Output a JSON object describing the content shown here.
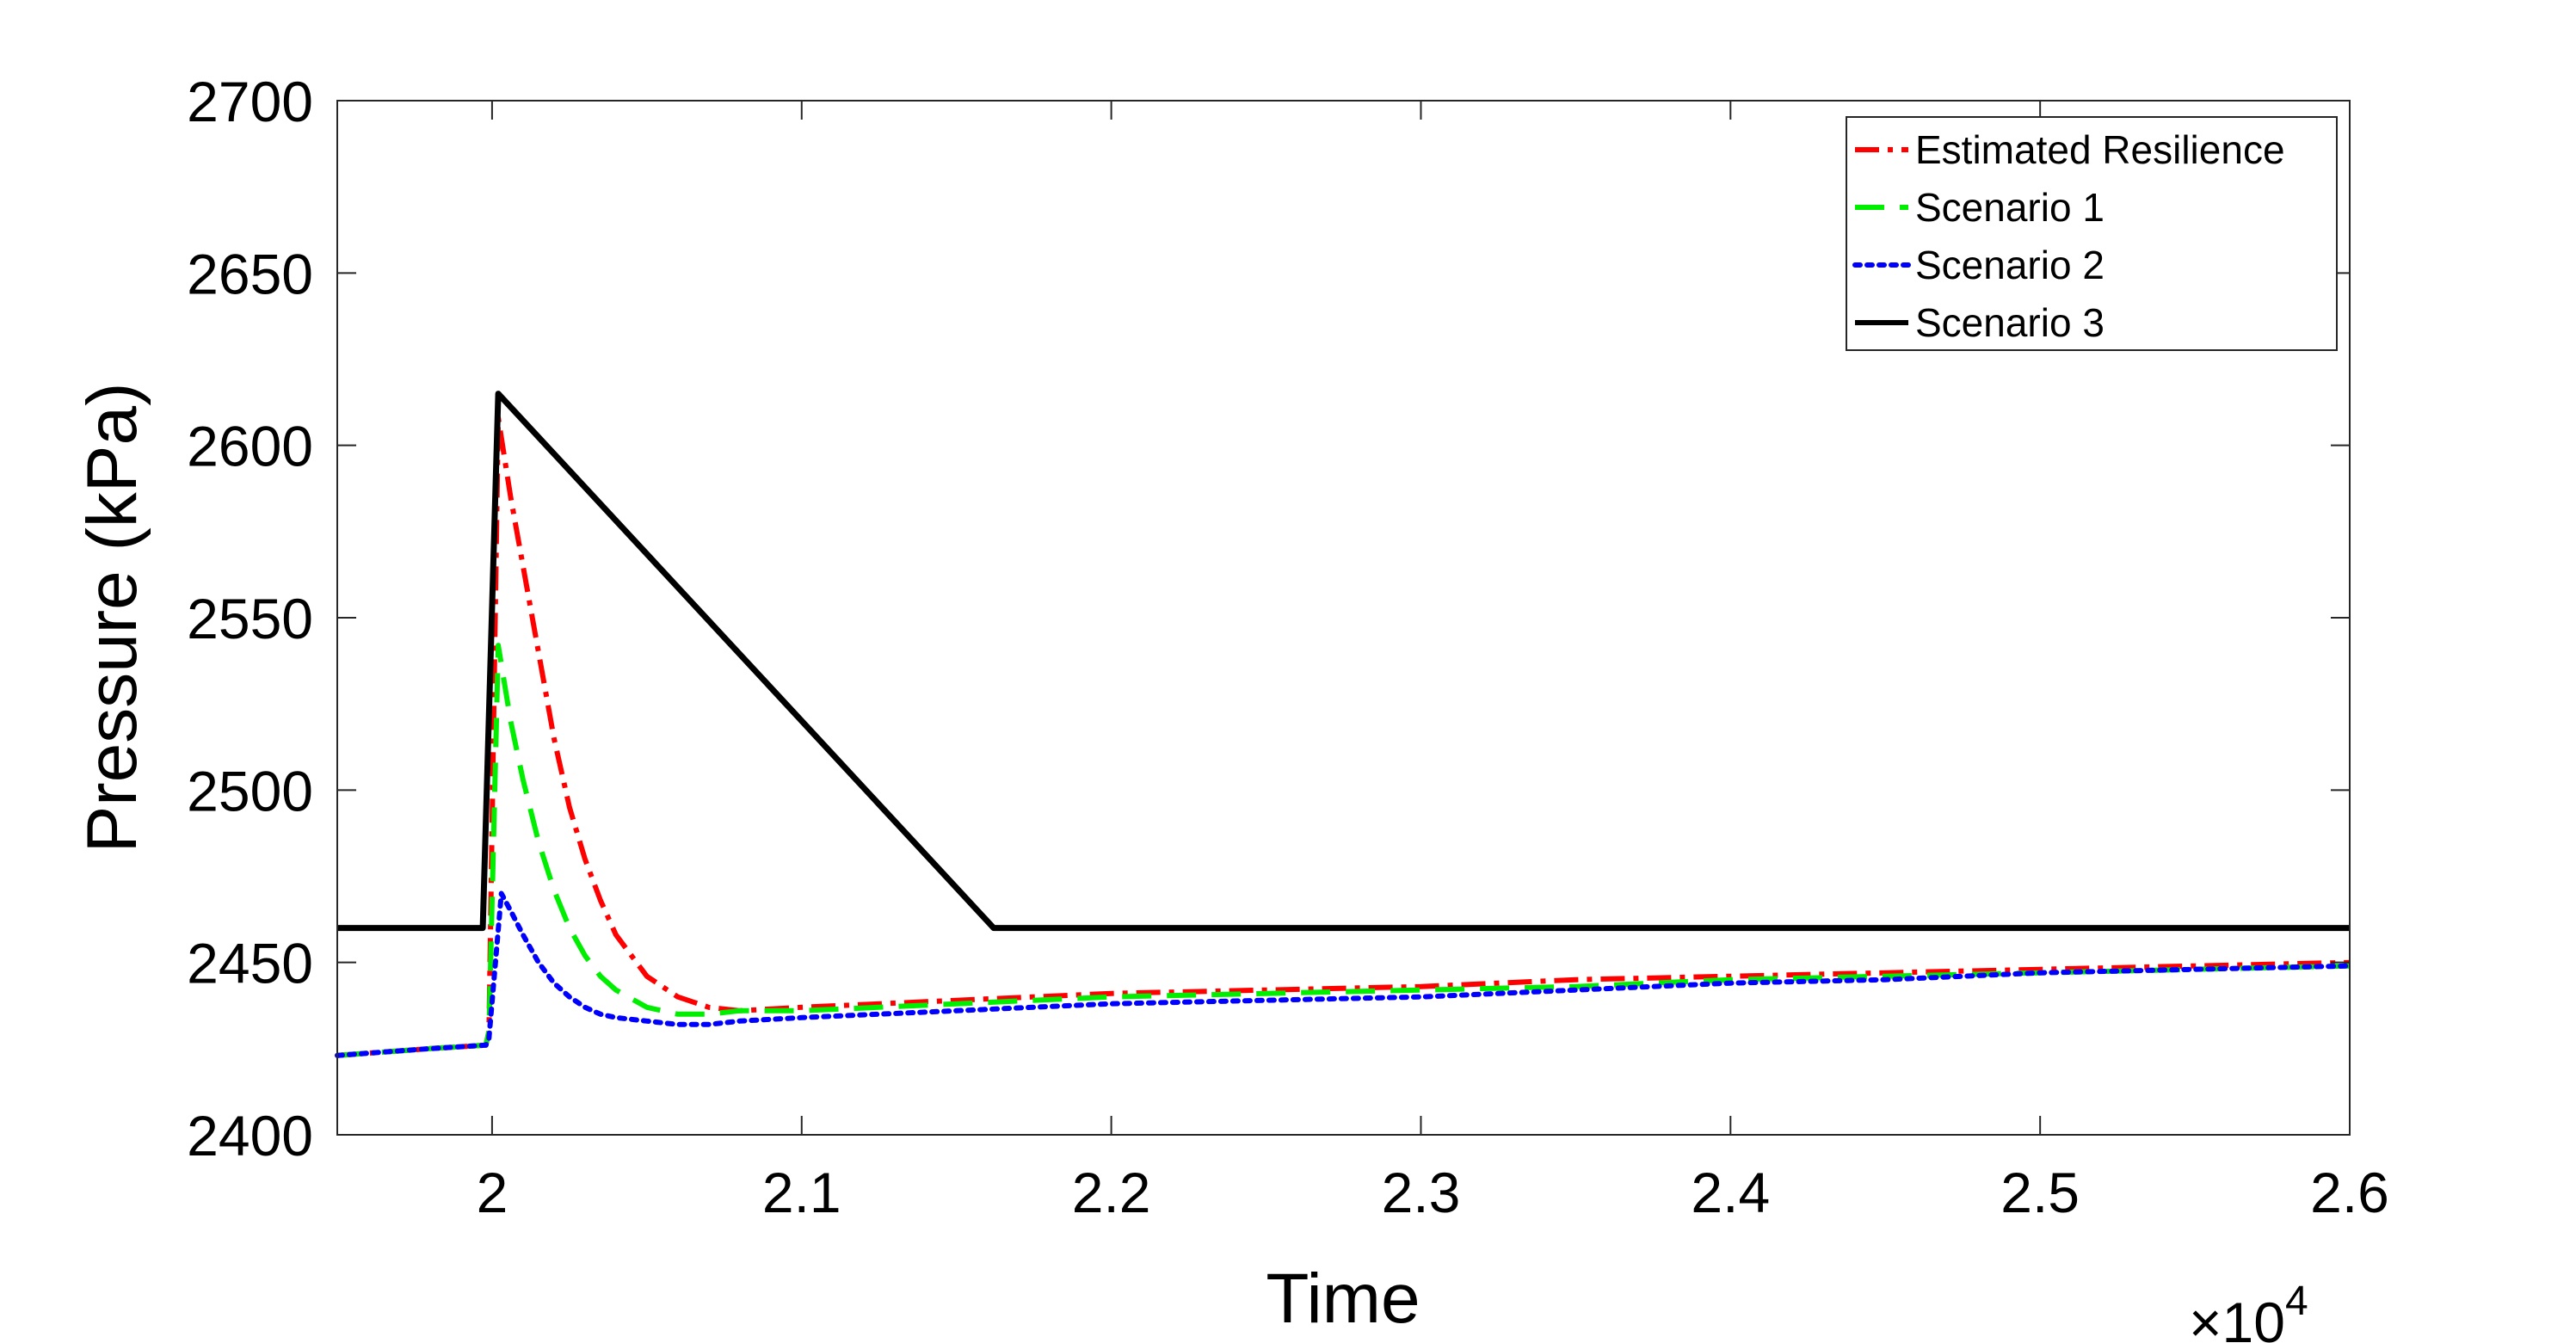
{
  "chart_data": {
    "type": "line",
    "title": "",
    "xlabel": "Time",
    "ylabel": "Pressure (kPa)",
    "x_exponent_label": {
      "times": "×10",
      "exponent": "4"
    },
    "xlim": [
      19500,
      26000
    ],
    "ylim": [
      2400,
      2700
    ],
    "xticks": [
      20000,
      21000,
      22000,
      23000,
      24000,
      25000,
      26000
    ],
    "xtick_labels": [
      "2",
      "2.1",
      "2.2",
      "2.3",
      "2.4",
      "2.5",
      "2.6"
    ],
    "yticks": [
      2400,
      2450,
      2500,
      2550,
      2600,
      2650,
      2700
    ],
    "ytick_labels": [
      "2400",
      "2450",
      "2500",
      "2550",
      "2600",
      "2650",
      "2700"
    ],
    "grid": false,
    "legend_position": "top-right",
    "series": [
      {
        "name": "Estimated Resilience",
        "color": "#ff0000",
        "dash": "dash-dot",
        "x": [
          19500,
          19800,
          19980,
          19990,
          20020,
          20060,
          20100,
          20150,
          20200,
          20250,
          20300,
          20350,
          20400,
          20500,
          20600,
          20700,
          20800,
          21000,
          21500,
          22000,
          22500,
          23000,
          23500,
          24000,
          24500,
          25000,
          25500,
          26000
        ],
        "y": [
          2423,
          2425,
          2426,
          2430,
          2608,
          2585,
          2565,
          2540,
          2515,
          2495,
          2480,
          2468,
          2458,
          2446,
          2440,
          2437,
          2436,
          2437,
          2439,
          2441,
          2442,
          2443,
          2445,
          2446,
          2447,
          2448,
          2449,
          2450
        ]
      },
      {
        "name": "Scenario 1",
        "color": "#00ee00",
        "dash": "dashed",
        "x": [
          19500,
          19800,
          19980,
          19990,
          20020,
          20060,
          20100,
          20150,
          20200,
          20250,
          20300,
          20350,
          20400,
          20500,
          20600,
          20700,
          20800,
          21000,
          21500,
          22000,
          22500,
          23000,
          23500,
          24000,
          24500,
          25000,
          25500,
          26000
        ],
        "y": [
          2423,
          2425,
          2426,
          2430,
          2542,
          2520,
          2503,
          2485,
          2471,
          2460,
          2452,
          2446,
          2442,
          2437,
          2435,
          2435,
          2436,
          2436,
          2438,
          2440,
          2441,
          2442,
          2443,
          2445,
          2446,
          2447,
          2448,
          2449
        ]
      },
      {
        "name": "Scenario 2",
        "color": "#0000ff",
        "dash": "dotted",
        "x": [
          19500,
          19800,
          19980,
          19990,
          20030,
          20060,
          20100,
          20150,
          20200,
          20250,
          20300,
          20350,
          20400,
          20500,
          20600,
          20700,
          20800,
          21000,
          21500,
          22000,
          22500,
          23000,
          23500,
          24000,
          24500,
          25000,
          25500,
          26000
        ],
        "y": [
          2423,
          2425,
          2426,
          2428,
          2470,
          2465,
          2458,
          2450,
          2444,
          2440,
          2437,
          2435,
          2434,
          2433,
          2432,
          2432,
          2433,
          2434,
          2436,
          2438,
          2439,
          2440,
          2442,
          2444,
          2445,
          2447,
          2448,
          2449
        ]
      },
      {
        "name": "Scenario 3",
        "color": "#000000",
        "dash": "solid",
        "x": [
          19500,
          19970,
          20020,
          21620,
          26000
        ],
        "y": [
          2460,
          2460,
          2615,
          2460,
          2460
        ]
      }
    ]
  }
}
